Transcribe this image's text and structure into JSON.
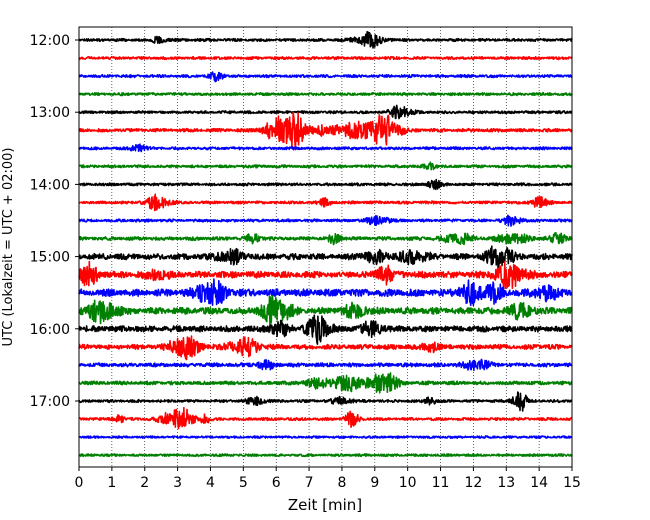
{
  "chart_data": {
    "type": "line",
    "title": "",
    "xlabel": "Zeit  [min]",
    "ylabel": "UTC (Lokalzeit = UTC + 02:00)",
    "xlim": [
      0,
      15
    ],
    "x_ticks": [
      "0",
      "1",
      "2",
      "3",
      "4",
      "5",
      "6",
      "7",
      "8",
      "9",
      "10",
      "11",
      "12",
      "13",
      "14",
      "15"
    ],
    "y_tick_labels": [
      "12:00",
      "13:00",
      "14:00",
      "15:00",
      "16:00",
      "17:00"
    ],
    "grid": "vertical dotted",
    "legend": "none",
    "trace_colors": [
      "#000000",
      "#ff0000",
      "#0000ff",
      "#008000"
    ],
    "traces_start": "12:00",
    "trace_interval_minutes": 15,
    "traces": [
      {
        "start": "12:00",
        "color": "#000000",
        "activity": 1,
        "events": [
          [
            2.5,
            3,
            0.25
          ],
          [
            8.8,
            6,
            0.4
          ]
        ]
      },
      {
        "start": "12:15",
        "color": "#ff0000",
        "activity": 1,
        "events": []
      },
      {
        "start": "12:30",
        "color": "#0000ff",
        "activity": 1,
        "events": [
          [
            4.2,
            4,
            0.2
          ]
        ]
      },
      {
        "start": "12:45",
        "color": "#008000",
        "activity": 1,
        "events": []
      },
      {
        "start": "13:00",
        "color": "#000000",
        "activity": 1,
        "events": [
          [
            9.8,
            6,
            0.3
          ]
        ]
      },
      {
        "start": "13:15",
        "color": "#ff0000",
        "activity": 1.2,
        "events": [
          [
            6.2,
            13,
            0.5
          ],
          [
            6.6,
            8,
            0.3
          ],
          [
            7.3,
            4,
            0.3
          ],
          [
            8.1,
            6,
            0.4
          ],
          [
            9.3,
            13,
            0.45
          ],
          [
            8.7,
            5,
            0.3
          ]
        ]
      },
      {
        "start": "13:30",
        "color": "#0000ff",
        "activity": 1,
        "events": [
          [
            1.8,
            4,
            0.2
          ]
        ]
      },
      {
        "start": "13:45",
        "color": "#008000",
        "activity": 1,
        "events": [
          [
            10.7,
            3,
            0.2
          ]
        ]
      },
      {
        "start": "14:00",
        "color": "#000000",
        "activity": 1,
        "events": [
          [
            10.8,
            4,
            0.2
          ]
        ]
      },
      {
        "start": "14:15",
        "color": "#ff0000",
        "activity": 1,
        "events": [
          [
            2.4,
            6,
            0.35
          ],
          [
            7.5,
            3,
            0.2
          ],
          [
            14.0,
            4,
            0.3
          ]
        ]
      },
      {
        "start": "14:30",
        "color": "#0000ff",
        "activity": 1,
        "events": [
          [
            9.1,
            4,
            0.3
          ],
          [
            13.2,
            4,
            0.3
          ]
        ]
      },
      {
        "start": "14:45",
        "color": "#008000",
        "activity": 1.3,
        "events": [
          [
            5.3,
            4,
            0.2
          ],
          [
            7.8,
            4,
            0.2
          ],
          [
            11.5,
            5,
            0.4
          ],
          [
            13.2,
            5,
            0.4
          ],
          [
            14.6,
            4,
            0.3
          ]
        ]
      },
      {
        "start": "15:00",
        "color": "#000000",
        "activity": 2.2,
        "events": [
          [
            4.6,
            5,
            0.4
          ],
          [
            10.2,
            5,
            0.4
          ],
          [
            12.8,
            10,
            0.35
          ],
          [
            9.0,
            4,
            0.4
          ]
        ]
      },
      {
        "start": "15:15",
        "color": "#ff0000",
        "activity": 2.4,
        "events": [
          [
            0.3,
            8,
            0.3
          ],
          [
            9.3,
            10,
            0.2
          ],
          [
            13.1,
            10,
            0.45
          ],
          [
            2.4,
            4,
            0.3
          ]
        ]
      },
      {
        "start": "15:30",
        "color": "#0000ff",
        "activity": 2.6,
        "events": [
          [
            4.0,
            10,
            0.45
          ],
          [
            11.9,
            8,
            0.35
          ],
          [
            12.6,
            7,
            0.3
          ],
          [
            14.2,
            6,
            0.35
          ]
        ]
      },
      {
        "start": "15:45",
        "color": "#008000",
        "activity": 2.4,
        "events": [
          [
            0.7,
            9,
            0.45
          ],
          [
            6.0,
            12,
            0.4
          ],
          [
            8.4,
            5,
            0.35
          ],
          [
            13.4,
            5,
            0.4
          ]
        ]
      },
      {
        "start": "16:00",
        "color": "#000000",
        "activity": 2.2,
        "events": [
          [
            6.1,
            6,
            0.3
          ],
          [
            7.3,
            11,
            0.35
          ],
          [
            8.9,
            5,
            0.35
          ]
        ]
      },
      {
        "start": "16:15",
        "color": "#ff0000",
        "activity": 1.8,
        "events": [
          [
            3.2,
            11,
            0.4
          ],
          [
            5.0,
            7,
            0.45
          ],
          [
            10.7,
            5,
            0.2
          ]
        ]
      },
      {
        "start": "16:30",
        "color": "#0000ff",
        "activity": 1.4,
        "events": [
          [
            12.1,
            5,
            0.35
          ],
          [
            5.7,
            3,
            0.3
          ]
        ]
      },
      {
        "start": "16:45",
        "color": "#008000",
        "activity": 1.3,
        "events": [
          [
            8.3,
            7,
            0.4
          ],
          [
            9.3,
            11,
            0.35
          ],
          [
            7.4,
            4,
            0.5
          ]
        ]
      },
      {
        "start": "17:00",
        "color": "#000000",
        "activity": 1,
        "events": [
          [
            10.7,
            4,
            0.15
          ],
          [
            13.4,
            10,
            0.2
          ],
          [
            5.4,
            3,
            0.3
          ],
          [
            8.0,
            3,
            0.3
          ]
        ]
      },
      {
        "start": "17:15",
        "color": "#ff0000",
        "activity": 1,
        "events": [
          [
            3.0,
            10,
            0.45
          ],
          [
            1.2,
            4,
            0.15
          ],
          [
            8.3,
            6,
            0.2
          ],
          [
            3.8,
            5,
            0.15
          ]
        ]
      },
      {
        "start": "17:30",
        "color": "#0000ff",
        "activity": 0.8,
        "events": []
      },
      {
        "start": "17:45",
        "color": "#008000",
        "activity": 0.9,
        "events": []
      }
    ]
  }
}
